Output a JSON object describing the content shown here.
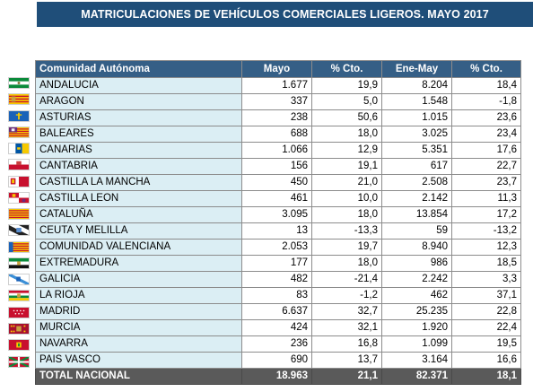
{
  "title": "MATRICULACIONES DE VEHÍCULOS COMERCIALES LIGEROS. MAYO 2017",
  "headers": [
    "Comunidad Autónoma",
    "Mayo",
    "% Cto.",
    "Ene-May",
    "% Cto."
  ],
  "rows": [
    {
      "region": "ANDALUCIA",
      "mayo": "1.677",
      "cto_mayo": "19,9",
      "ene_may": "8.204",
      "cto_ene": "18,4",
      "flag": "andalucia-flag-icon"
    },
    {
      "region": "ARAGON",
      "mayo": "337",
      "cto_mayo": "5,0",
      "ene_may": "1.548",
      "cto_ene": "-1,8",
      "flag": "aragon-flag-icon"
    },
    {
      "region": "ASTURIAS",
      "mayo": "238",
      "cto_mayo": "50,6",
      "ene_may": "1.015",
      "cto_ene": "23,6",
      "flag": "asturias-flag-icon"
    },
    {
      "region": "BALEARES",
      "mayo": "688",
      "cto_mayo": "18,0",
      "ene_may": "3.025",
      "cto_ene": "23,4",
      "flag": "baleares-flag-icon"
    },
    {
      "region": "CANARIAS",
      "mayo": "1.066",
      "cto_mayo": "12,9",
      "ene_may": "5.351",
      "cto_ene": "17,6",
      "flag": "canarias-flag-icon"
    },
    {
      "region": "CANTABRIA",
      "mayo": "156",
      "cto_mayo": "19,1",
      "ene_may": "617",
      "cto_ene": "22,7",
      "flag": "cantabria-flag-icon"
    },
    {
      "region": "CASTILLA LA MANCHA",
      "mayo": "450",
      "cto_mayo": "21,0",
      "ene_may": "2.508",
      "cto_ene": "23,7",
      "flag": "castilla-la-mancha-flag-icon"
    },
    {
      "region": "CASTILLA LEON",
      "mayo": "461",
      "cto_mayo": "10,0",
      "ene_may": "2.142",
      "cto_ene": "11,3",
      "flag": "castilla-leon-flag-icon"
    },
    {
      "region": "CATALUÑA",
      "mayo": "3.095",
      "cto_mayo": "18,0",
      "ene_may": "13.854",
      "cto_ene": "17,2",
      "flag": "cataluna-flag-icon"
    },
    {
      "region": "CEUTA Y MELILLA",
      "mayo": "13",
      "cto_mayo": "-13,3",
      "ene_may": "59",
      "cto_ene": "-13,2",
      "flag": "ceuta-melilla-flag-icon"
    },
    {
      "region": "COMUNIDAD VALENCIANA",
      "mayo": "2.053",
      "cto_mayo": "19,7",
      "ene_may": "8.940",
      "cto_ene": "12,3",
      "flag": "valenciana-flag-icon"
    },
    {
      "region": "EXTREMADURA",
      "mayo": "177",
      "cto_mayo": "18,0",
      "ene_may": "986",
      "cto_ene": "18,5",
      "flag": "extremadura-flag-icon"
    },
    {
      "region": "GALICIA",
      "mayo": "482",
      "cto_mayo": "-21,4",
      "ene_may": "2.242",
      "cto_ene": "3,3",
      "flag": "galicia-flag-icon"
    },
    {
      "region": "LA RIOJA",
      "mayo": "83",
      "cto_mayo": "-1,2",
      "ene_may": "462",
      "cto_ene": "37,1",
      "flag": "la-rioja-flag-icon"
    },
    {
      "region": "MADRID",
      "mayo": "6.637",
      "cto_mayo": "32,7",
      "ene_may": "25.235",
      "cto_ene": "22,8",
      "flag": "madrid-flag-icon"
    },
    {
      "region": "MURCIA",
      "mayo": "424",
      "cto_mayo": "32,1",
      "ene_may": "1.920",
      "cto_ene": "22,4",
      "flag": "murcia-flag-icon"
    },
    {
      "region": "NAVARRA",
      "mayo": "236",
      "cto_mayo": "16,8",
      "ene_may": "1.099",
      "cto_ene": "19,5",
      "flag": "navarra-flag-icon"
    },
    {
      "region": "PAIS VASCO",
      "mayo": "690",
      "cto_mayo": "13,7",
      "ene_may": "3.164",
      "cto_ene": "16,6",
      "flag": "pais-vasco-flag-icon"
    }
  ],
  "total": {
    "region": "TOTAL NACIONAL",
    "mayo": "18.963",
    "cto_mayo": "21,1",
    "ene_may": "82.371",
    "cto_ene": "18,1"
  },
  "colors": {
    "banner": "#1f4e79",
    "header": "#355f86",
    "region_cell": "#dbeef4",
    "total_row": "#5a5a5a"
  }
}
